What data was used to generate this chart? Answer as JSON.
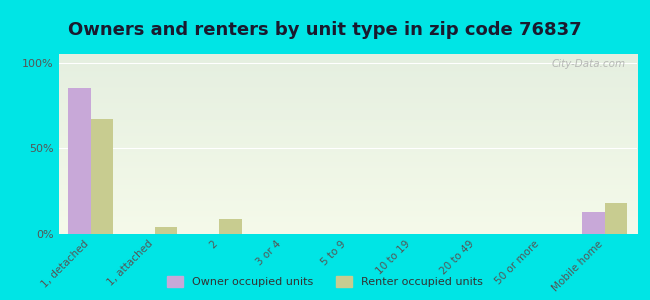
{
  "title": "Owners and renters by unit type in zip code 76837",
  "categories": [
    "1, detached",
    "1, attached",
    "2",
    "3 or 4",
    "5 to 9",
    "10 to 19",
    "20 to 49",
    "50 or more",
    "Mobile home"
  ],
  "owner_values": [
    85,
    0,
    0,
    0,
    0,
    0,
    0,
    0,
    13
  ],
  "renter_values": [
    67,
    4,
    9,
    0,
    0,
    0,
    0,
    0,
    18
  ],
  "owner_color": "#c8a8d8",
  "renter_color": "#c8cc90",
  "background_color": "#00e5e5",
  "plot_bg_top": "#e5efe0",
  "plot_bg_bottom": "#f5faea",
  "yticks": [
    0,
    50,
    100
  ],
  "ylim": [
    0,
    105
  ],
  "bar_width": 0.35,
  "title_fontsize": 13,
  "watermark": "City-Data.com"
}
